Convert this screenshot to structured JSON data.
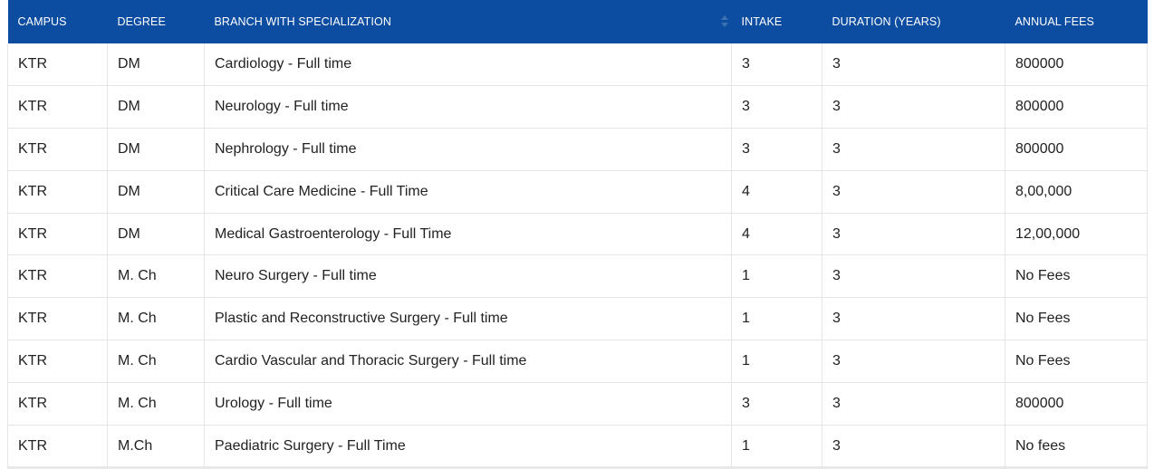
{
  "table": {
    "headers": [
      "CAMPUS",
      "DEGREE",
      "BRANCH WITH SPECIALIZATION",
      "INTAKE",
      "DURATION (YEARS)",
      "ANNUAL FEES"
    ],
    "rows": [
      [
        "KTR",
        "DM",
        "Cardiology - Full time",
        "3",
        "3",
        "800000"
      ],
      [
        "KTR",
        "DM",
        "Neurology - Full time",
        "3",
        "3",
        "800000"
      ],
      [
        "KTR",
        "DM",
        "Nephrology - Full time",
        "3",
        "3",
        "800000"
      ],
      [
        "KTR",
        "DM",
        "Critical Care Medicine - Full Time",
        "4",
        "3",
        "8,00,000"
      ],
      [
        "KTR",
        "DM",
        "Medical Gastroenterology - Full Time",
        "4",
        "3",
        "12,00,000"
      ],
      [
        "KTR",
        "M. Ch",
        "Neuro Surgery - Full time",
        "1",
        "3",
        "No Fees"
      ],
      [
        "KTR",
        "M. Ch",
        "Plastic and Reconstructive Surgery - Full time",
        "1",
        "3",
        "No Fees"
      ],
      [
        "KTR",
        "M. Ch",
        "Cardio Vascular and Thoracic Surgery - Full time",
        "1",
        "3",
        "No Fees"
      ],
      [
        "KTR",
        "M. Ch",
        "Urology - Full time",
        "3",
        "3",
        "800000"
      ],
      [
        "KTR",
        "M.Ch",
        "Paediatric Surgery - Full Time",
        "1",
        "3",
        "No fees"
      ]
    ],
    "sort_icon": "sort-arrows-icon",
    "header_color": "#0c4da2"
  }
}
